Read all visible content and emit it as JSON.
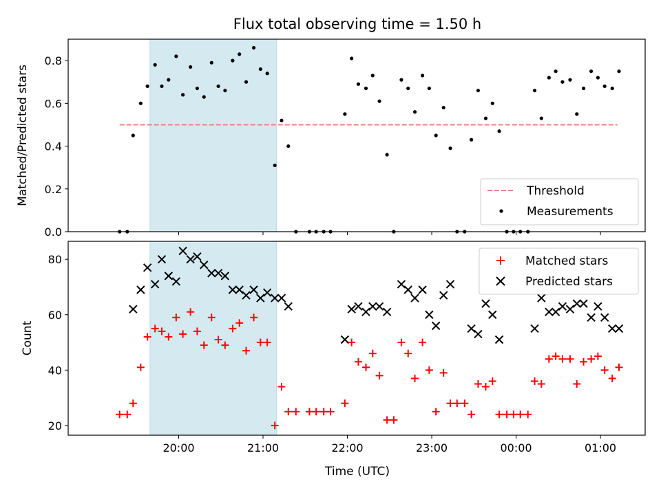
{
  "chart_data": {
    "title": "Flux total observing time = 1.50 h",
    "xlabel": "Time (UTC)",
    "x_unit": "hours since 19:00 UTC",
    "xlim": [
      -0.31,
      6.53
    ],
    "xticks": [
      {
        "x": 1,
        "label": "20:00"
      },
      {
        "x": 2,
        "label": "21:00"
      },
      {
        "x": 3,
        "label": "22:00"
      },
      {
        "x": 4,
        "label": "23:00"
      },
      {
        "x": 5,
        "label": "00:00"
      },
      {
        "x": 6,
        "label": "01:00"
      }
    ],
    "shaded_region": {
      "x": [
        0.66,
        2.16
      ],
      "color": "#d4eaf0"
    },
    "colors": {
      "threshold": "#f08080",
      "measurements": "#000000",
      "matched": "#ff0000",
      "predicted": "#000000"
    },
    "panels": [
      {
        "type": "scatter",
        "ylabel": "Matched/Predicted stars",
        "ylim": [
          0,
          0.9
        ],
        "yticks": [
          0.0,
          0.2,
          0.4,
          0.6,
          0.8
        ],
        "ytick_labels": [
          "0.0",
          "0.2",
          "0.4",
          "0.6",
          "0.8"
        ],
        "legend_position": "lower right",
        "threshold": {
          "name": "Threshold",
          "y": 0.5,
          "x_range": [
            0.3,
            6.2
          ],
          "style": "dashed"
        },
        "series": [
          {
            "name": "Measurements",
            "marker": "dot",
            "points": [
              [
                0.3,
                0.0
              ],
              [
                0.39,
                0.0
              ],
              [
                0.46,
                0.45
              ],
              [
                0.55,
                0.6
              ],
              [
                0.63,
                0.68
              ],
              [
                0.72,
                0.78
              ],
              [
                0.8,
                0.68
              ],
              [
                0.88,
                0.71
              ],
              [
                0.97,
                0.82
              ],
              [
                1.05,
                0.64
              ],
              [
                1.14,
                0.77
              ],
              [
                1.22,
                0.67
              ],
              [
                1.3,
                0.63
              ],
              [
                1.39,
                0.79
              ],
              [
                1.47,
                0.68
              ],
              [
                1.55,
                0.66
              ],
              [
                1.64,
                0.8
              ],
              [
                1.72,
                0.83
              ],
              [
                1.8,
                0.7
              ],
              [
                1.89,
                0.86
              ],
              [
                1.97,
                0.76
              ],
              [
                2.05,
                0.74
              ],
              [
                2.14,
                0.31
              ],
              [
                2.22,
                0.52
              ],
              [
                2.3,
                0.4
              ],
              [
                2.39,
                0.0
              ],
              [
                2.55,
                0.0
              ],
              [
                2.63,
                0.0
              ],
              [
                2.72,
                0.0
              ],
              [
                2.8,
                0.0
              ],
              [
                2.97,
                0.55
              ],
              [
                3.05,
                0.81
              ],
              [
                3.13,
                0.69
              ],
              [
                3.22,
                0.67
              ],
              [
                3.3,
                0.73
              ],
              [
                3.38,
                0.61
              ],
              [
                3.47,
                0.36
              ],
              [
                3.55,
                0.0
              ],
              [
                3.64,
                0.71
              ],
              [
                3.72,
                0.67
              ],
              [
                3.8,
                0.56
              ],
              [
                3.89,
                0.73
              ],
              [
                3.97,
                0.67
              ],
              [
                4.05,
                0.45
              ],
              [
                4.14,
                0.58
              ],
              [
                4.22,
                0.39
              ],
              [
                4.3,
                0.0
              ],
              [
                4.39,
                0.0
              ],
              [
                4.47,
                0.43
              ],
              [
                4.55,
                0.66
              ],
              [
                4.64,
                0.53
              ],
              [
                4.72,
                0.6
              ],
              [
                4.8,
                0.47
              ],
              [
                4.89,
                0.0
              ],
              [
                4.97,
                0.0
              ],
              [
                5.05,
                0.0
              ],
              [
                5.14,
                0.0
              ],
              [
                5.22,
                0.66
              ],
              [
                5.3,
                0.53
              ],
              [
                5.39,
                0.72
              ],
              [
                5.47,
                0.75
              ],
              [
                5.55,
                0.7
              ],
              [
                5.64,
                0.71
              ],
              [
                5.72,
                0.55
              ],
              [
                5.8,
                0.67
              ],
              [
                5.89,
                0.75
              ],
              [
                5.97,
                0.72
              ],
              [
                6.05,
                0.68
              ],
              [
                6.14,
                0.67
              ],
              [
                6.22,
                0.75
              ]
            ]
          }
        ]
      },
      {
        "type": "scatter",
        "ylabel": "Count",
        "ylim": [
          16.5,
          86.5
        ],
        "yticks": [
          20,
          40,
          60,
          80
        ],
        "ytick_labels": [
          "20",
          "40",
          "60",
          "80"
        ],
        "legend_position": "upper right",
        "series": [
          {
            "name": "Matched stars",
            "marker": "plus",
            "points": [
              [
                0.3,
                24
              ],
              [
                0.39,
                24
              ],
              [
                0.46,
                28
              ],
              [
                0.55,
                41
              ],
              [
                0.63,
                52
              ],
              [
                0.72,
                55
              ],
              [
                0.8,
                54
              ],
              [
                0.88,
                52
              ],
              [
                0.97,
                59
              ],
              [
                1.05,
                53
              ],
              [
                1.14,
                61
              ],
              [
                1.22,
                54
              ],
              [
                1.3,
                49
              ],
              [
                1.39,
                59
              ],
              [
                1.47,
                51
              ],
              [
                1.55,
                49
              ],
              [
                1.64,
                55
              ],
              [
                1.72,
                57
              ],
              [
                1.8,
                47
              ],
              [
                1.89,
                59
              ],
              [
                1.97,
                50
              ],
              [
                2.05,
                50
              ],
              [
                2.14,
                20
              ],
              [
                2.22,
                34
              ],
              [
                2.3,
                25
              ],
              [
                2.39,
                25
              ],
              [
                2.55,
                25
              ],
              [
                2.63,
                25
              ],
              [
                2.72,
                25
              ],
              [
                2.8,
                25
              ],
              [
                2.97,
                28
              ],
              [
                3.05,
                50
              ],
              [
                3.13,
                43
              ],
              [
                3.22,
                41
              ],
              [
                3.3,
                46
              ],
              [
                3.38,
                38
              ],
              [
                3.47,
                22
              ],
              [
                3.55,
                22
              ],
              [
                3.64,
                50
              ],
              [
                3.72,
                46
              ],
              [
                3.8,
                37
              ],
              [
                3.89,
                50
              ],
              [
                3.97,
                40
              ],
              [
                4.05,
                25
              ],
              [
                4.14,
                39
              ],
              [
                4.22,
                28
              ],
              [
                4.3,
                28
              ],
              [
                4.39,
                28
              ],
              [
                4.47,
                24
              ],
              [
                4.55,
                35
              ],
              [
                4.64,
                34
              ],
              [
                4.72,
                36
              ],
              [
                4.8,
                24
              ],
              [
                4.89,
                24
              ],
              [
                4.97,
                24
              ],
              [
                5.05,
                24
              ],
              [
                5.14,
                24
              ],
              [
                5.22,
                36
              ],
              [
                5.3,
                35
              ],
              [
                5.39,
                44
              ],
              [
                5.47,
                45
              ],
              [
                5.55,
                44
              ],
              [
                5.64,
                44
              ],
              [
                5.72,
                35
              ],
              [
                5.8,
                43
              ],
              [
                5.89,
                44
              ],
              [
                5.97,
                45
              ],
              [
                6.05,
                40
              ],
              [
                6.14,
                37
              ],
              [
                6.22,
                41
              ]
            ]
          },
          {
            "name": "Predicted stars",
            "marker": "x",
            "points": [
              [
                0.46,
                62
              ],
              [
                0.55,
                69
              ],
              [
                0.63,
                77
              ],
              [
                0.72,
                71
              ],
              [
                0.8,
                80
              ],
              [
                0.88,
                74
              ],
              [
                0.97,
                72
              ],
              [
                1.05,
                83
              ],
              [
                1.14,
                80
              ],
              [
                1.22,
                81
              ],
              [
                1.3,
                78
              ],
              [
                1.39,
                75
              ],
              [
                1.47,
                75
              ],
              [
                1.55,
                74
              ],
              [
                1.64,
                69
              ],
              [
                1.72,
                69
              ],
              [
                1.8,
                67
              ],
              [
                1.89,
                69
              ],
              [
                1.97,
                66
              ],
              [
                2.05,
                68
              ],
              [
                2.14,
                66
              ],
              [
                2.22,
                66
              ],
              [
                2.3,
                63
              ],
              [
                2.97,
                51
              ],
              [
                3.05,
                62
              ],
              [
                3.13,
                63
              ],
              [
                3.22,
                61
              ],
              [
                3.3,
                63
              ],
              [
                3.38,
                63
              ],
              [
                3.47,
                61
              ],
              [
                3.64,
                71
              ],
              [
                3.72,
                69
              ],
              [
                3.8,
                66
              ],
              [
                3.89,
                69
              ],
              [
                3.97,
                60
              ],
              [
                4.05,
                56
              ],
              [
                4.14,
                67
              ],
              [
                4.22,
                71
              ],
              [
                4.47,
                55
              ],
              [
                4.55,
                53
              ],
              [
                4.64,
                64
              ],
              [
                4.72,
                60
              ],
              [
                4.8,
                51
              ],
              [
                5.22,
                55
              ],
              [
                5.3,
                66
              ],
              [
                5.39,
                61
              ],
              [
                5.47,
                61
              ],
              [
                5.55,
                63
              ],
              [
                5.64,
                62
              ],
              [
                5.72,
                64
              ],
              [
                5.8,
                64
              ],
              [
                5.89,
                59
              ],
              [
                5.97,
                63
              ],
              [
                6.05,
                59
              ],
              [
                6.14,
                55
              ],
              [
                6.22,
                55
              ]
            ]
          }
        ]
      }
    ]
  }
}
